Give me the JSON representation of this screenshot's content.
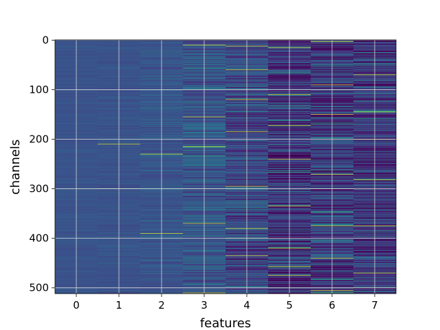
{
  "chart_data": {
    "type": "heatmap",
    "title": "",
    "xlabel": "features",
    "ylabel": "channels",
    "x_ticks": [
      0,
      1,
      2,
      3,
      4,
      5,
      6,
      7
    ],
    "y_ticks": [
      0,
      100,
      200,
      300,
      400,
      500
    ],
    "x_range": [
      -0.5,
      7.5
    ],
    "y_range": [
      0,
      511
    ],
    "y_inverted": true,
    "grid": true,
    "colormap": "viridis",
    "n_rows": 512,
    "n_cols": 8,
    "column_profiles": [
      {
        "feature": 0,
        "base": 0.26,
        "spread": 0.03,
        "bright_rows": []
      },
      {
        "feature": 1,
        "base": 0.26,
        "spread": 0.04,
        "bright_rows": [
          210,
          300
        ]
      },
      {
        "feature": 2,
        "base": 0.27,
        "spread": 0.07,
        "bright_rows": [
          230,
          390
        ]
      },
      {
        "feature": 3,
        "base": 0.27,
        "spread": 0.15,
        "bright_rows": [
          10,
          155,
          215,
          370,
          510
        ]
      },
      {
        "feature": 4,
        "base": 0.22,
        "spread": 0.17,
        "bright_rows": [
          12,
          60,
          120,
          185,
          295,
          380,
          400,
          435
        ]
      },
      {
        "feature": 5,
        "base": 0.15,
        "spread": 0.22,
        "bright_rows": [
          15,
          110,
          172,
          240,
          335,
          420,
          457,
          475
        ]
      },
      {
        "feature": 6,
        "base": 0.18,
        "spread": 0.22,
        "bright_rows": [
          3,
          90,
          150,
          271,
          375,
          440,
          505
        ]
      },
      {
        "feature": 7,
        "base": 0.17,
        "spread": 0.2,
        "bright_rows": [
          70,
          145,
          200,
          282,
          375,
          470
        ]
      }
    ],
    "colors": {
      "grid": "#d9d9d9",
      "axes_edge": "#000000"
    }
  }
}
